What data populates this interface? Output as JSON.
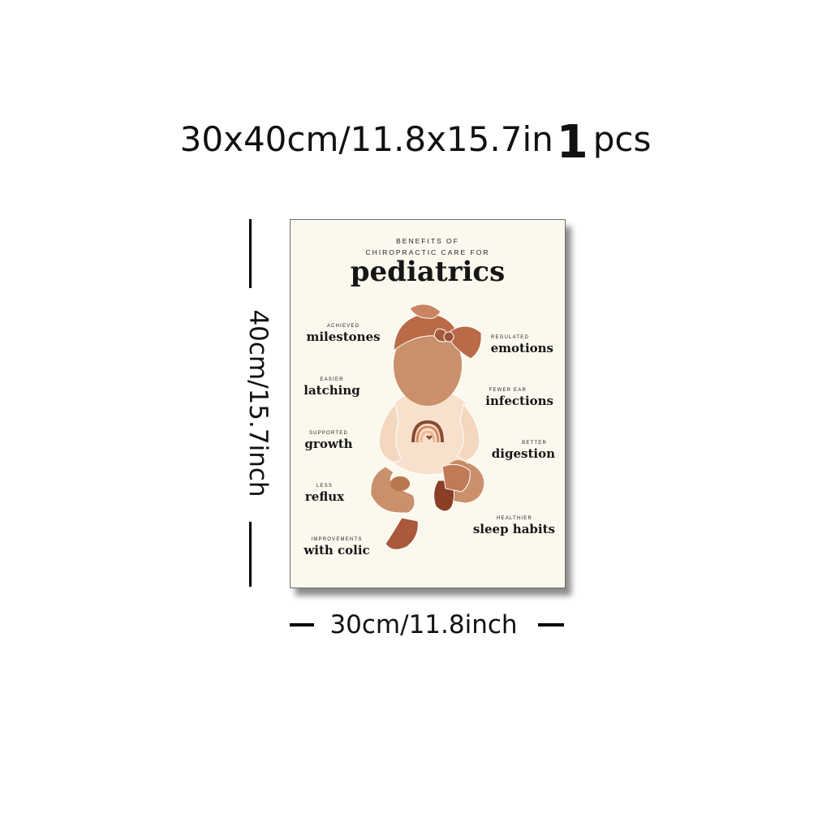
{
  "header": {
    "size_text": "30x40cm/11.8x15.7in",
    "count": "1",
    "unit": "pcs"
  },
  "dimensions": {
    "height_label": "40cm/15.7inch",
    "width_label": "30cm/11.8inch"
  },
  "poster": {
    "pretitle_line1": "BENEFITS OF",
    "pretitle_line2": "CHIROPRACTIC CARE FOR",
    "title": "pediatrics",
    "left_benefits": [
      {
        "small": "ACHIEVED",
        "big": "milestones"
      },
      {
        "small": "EASIER",
        "big": "latching"
      },
      {
        "small": "SUPPORTED",
        "big": "growth"
      },
      {
        "small": "LESS",
        "big": "reflux"
      },
      {
        "small": "IMPROVEMENTS",
        "big": "with colic"
      }
    ],
    "right_benefits": [
      {
        "small": "REGULATED",
        "big": "emotions"
      },
      {
        "small": "FEWER EAR",
        "big": "infections"
      },
      {
        "small": "BETTER",
        "big": "digestion"
      },
      {
        "small": "HEALTHIER",
        "big": "sleep habits"
      }
    ]
  },
  "colors": {
    "poster_background": "#fbf8ee",
    "headwrap": "#b96a47",
    "skin": "#c9906b",
    "onesie": "#f7e1cc",
    "shoes": "#a95a3c"
  }
}
